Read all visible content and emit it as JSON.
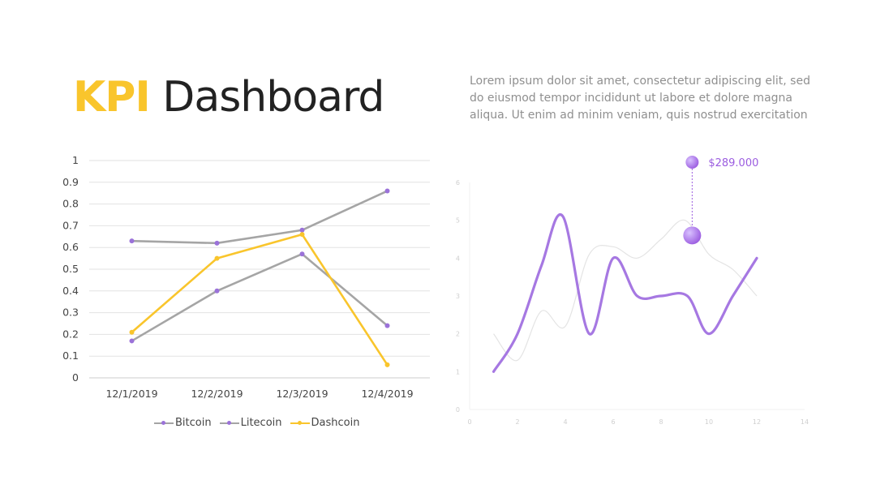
{
  "title": {
    "accent": "KPI",
    "rest": "Dashboard"
  },
  "description": "Lorem ipsum dolor sit amet, consectetur adipiscing elit, sed do eiusmod tempor incididunt ut labore et dolore magna aliqua. Ut enim ad minim veniam, quis nostrud exercitation",
  "chart_data": [
    {
      "type": "line",
      "categories": [
        "12/1/2019",
        "12/2/2019",
        "12/3/2019",
        "12/4/2019"
      ],
      "ylim": [
        0,
        1
      ],
      "yticks": [
        "0",
        "0.1",
        "0.2",
        "0.3",
        "0.4",
        "0.5",
        "0.6",
        "0.7",
        "0.8",
        "0.9",
        "1"
      ],
      "grid": true,
      "legend": "bottom",
      "series": [
        {
          "name": "Bitcoin",
          "values": [
            0.63,
            0.62,
            0.68,
            0.86
          ],
          "line_color": "#A5A5A5",
          "marker_color": "#9B72D9"
        },
        {
          "name": "Litecoin",
          "values": [
            0.17,
            0.4,
            0.57,
            0.24
          ],
          "line_color": "#A5A5A5",
          "marker_color": "#9B72D9"
        },
        {
          "name": "Dashcoin",
          "values": [
            0.21,
            0.55,
            0.66,
            0.06
          ],
          "line_color": "#F9C52C",
          "marker_color": "#F9C52C"
        }
      ]
    },
    {
      "type": "line",
      "xlim": [
        0,
        14
      ],
      "ylim": [
        0,
        6
      ],
      "xticks": [
        "0",
        "2",
        "4",
        "6",
        "8",
        "10",
        "12",
        "14"
      ],
      "yticks": [
        "0",
        "1",
        "2",
        "3",
        "4",
        "5",
        "6"
      ],
      "grid": false,
      "series": [
        {
          "x": [
            1,
            2,
            3,
            3.9,
            5,
            6,
            7,
            8,
            9.1,
            10,
            11,
            12
          ],
          "values": [
            1,
            2,
            3.8,
            5.1,
            2,
            4,
            3,
            3,
            3,
            2,
            3,
            4
          ],
          "color": "#A678E2"
        },
        {
          "x": [
            1,
            2,
            3,
            4,
            5,
            6,
            7,
            8,
            9,
            10,
            11,
            12
          ],
          "values": [
            2,
            1.3,
            2.6,
            2.2,
            4.1,
            4.3,
            4,
            4.5,
            5,
            4.1,
            3.7,
            3
          ],
          "color": "#E4E4E4"
        }
      ],
      "annotation": {
        "label": "$289.000",
        "x": 9.3,
        "y": 4.6,
        "color": "#9B5CE0"
      }
    }
  ]
}
